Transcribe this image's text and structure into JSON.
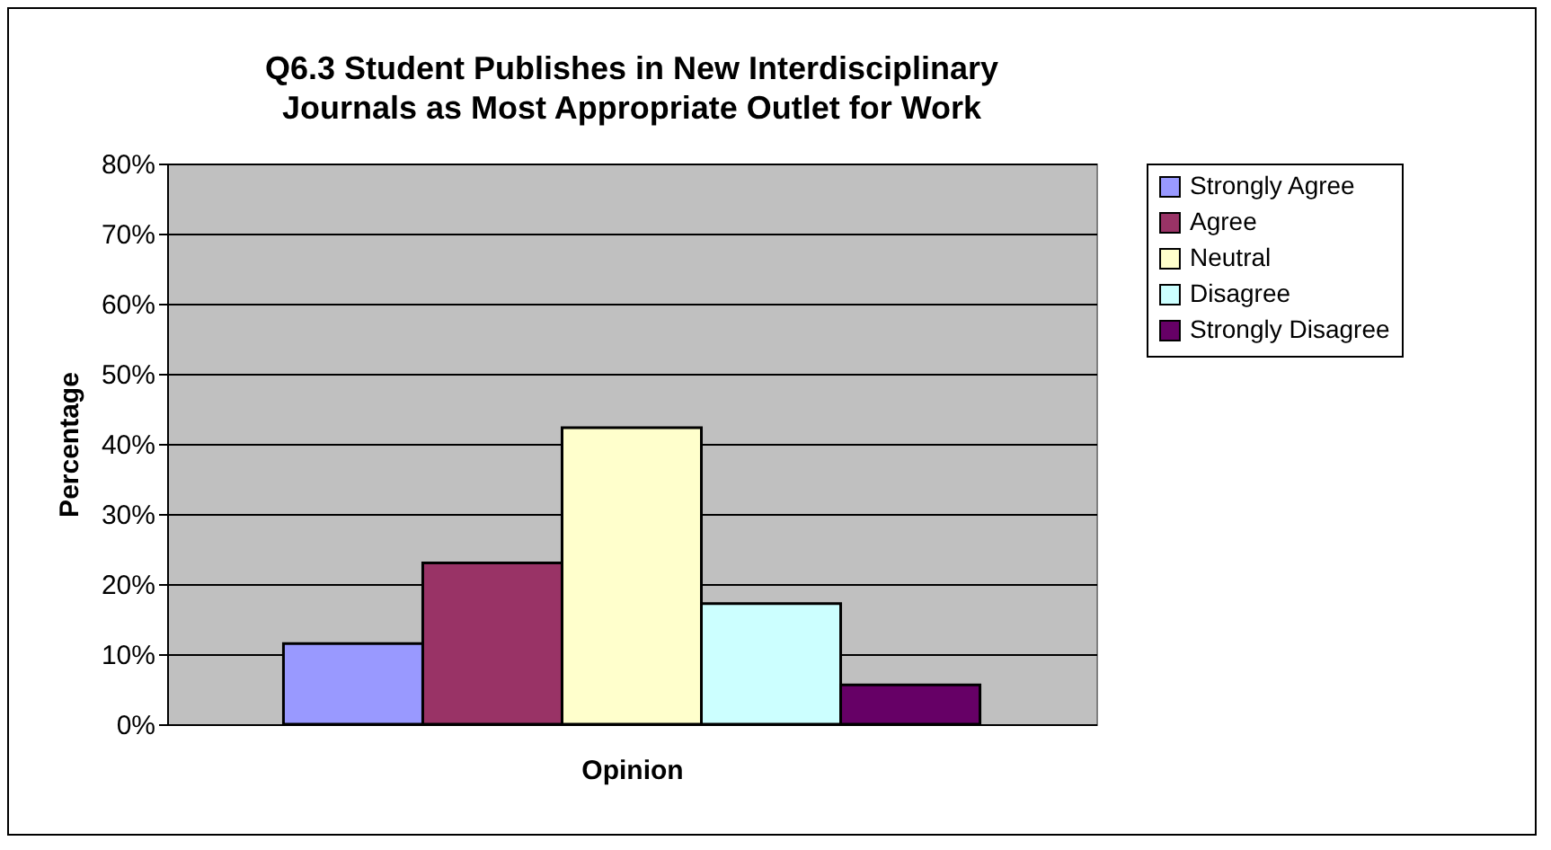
{
  "chart_data": {
    "type": "bar",
    "title": "Q6.3 Student Publishes in New Interdisciplinary Journals as Most Appropriate Outlet for Work",
    "xlabel": "Opinion",
    "ylabel": "Percentage",
    "categories": [
      null
    ],
    "series": [
      {
        "name": "Strongly Agree",
        "color": "#9999ff",
        "values": [
          11.5
        ]
      },
      {
        "name": "Agree",
        "color": "#993366",
        "values": [
          23
        ]
      },
      {
        "name": "Neutral",
        "color": "#ffffcc",
        "values": [
          42.3
        ]
      },
      {
        "name": "Disagree",
        "color": "#ccffff",
        "values": [
          17.2
        ]
      },
      {
        "name": "Strongly Disagree",
        "color": "#660066",
        "values": [
          5.6
        ]
      }
    ],
    "ylim": [
      0,
      80
    ],
    "yticks": [
      {
        "value": 0,
        "label": "0%"
      },
      {
        "value": 10,
        "label": "10%"
      },
      {
        "value": 20,
        "label": "20%"
      },
      {
        "value": 30,
        "label": "30%"
      },
      {
        "value": 40,
        "label": "40%"
      },
      {
        "value": 50,
        "label": "50%"
      },
      {
        "value": 60,
        "label": "60%"
      },
      {
        "value": 70,
        "label": "70%"
      },
      {
        "value": 80,
        "label": "80%"
      }
    ],
    "grid": "y",
    "legend": "right"
  }
}
